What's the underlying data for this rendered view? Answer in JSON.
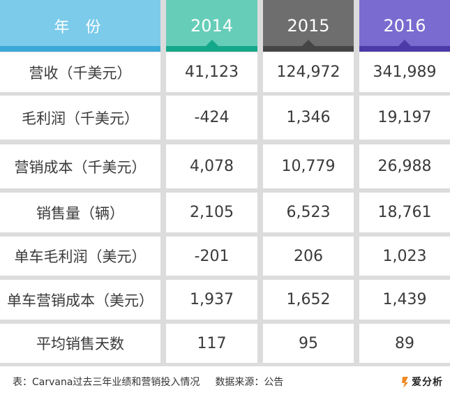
{
  "header": {
    "label": "年 份",
    "years": [
      "2014",
      "2015",
      "2016"
    ]
  },
  "rows": [
    {
      "label": "营收（千美元）",
      "values": [
        "41,123",
        "124,972",
        "341,989"
      ]
    },
    {
      "label": "毛利润（千美元）",
      "values": [
        "-424",
        "1,346",
        "19,197"
      ]
    },
    {
      "label": "营销成本（千美元）",
      "values": [
        "4,078",
        "10,779",
        "26,988"
      ]
    },
    {
      "label": "销售量（辆）",
      "values": [
        "2,105",
        "6,523",
        "18,761"
      ]
    },
    {
      "label": "单车毛利润（美元）",
      "values": [
        "-201",
        "206",
        "1,023"
      ]
    },
    {
      "label": "单车营销成本（美元）",
      "values": [
        "1,937",
        "1,652",
        "1,439"
      ]
    },
    {
      "label": "平均销售天数",
      "values": [
        "117",
        "95",
        "89"
      ]
    }
  ],
  "footer": {
    "caption": "表：Carvana过去三年业绩和营销投入情况",
    "source": "数据来源：公告"
  },
  "logo": {
    "text": "爱分析"
  },
  "colors": {
    "label_col": "#7ccbea",
    "label_stripe": "#3aa9d8",
    "y2014": "#66cdb8",
    "y2014_stripe": "#14a88a",
    "y2015": "#6e6e6e",
    "y2015_stripe": "#454545",
    "y2016": "#7a6bd0",
    "y2016_stripe": "#4b3aa8",
    "logo_orange": "#f08a24"
  }
}
